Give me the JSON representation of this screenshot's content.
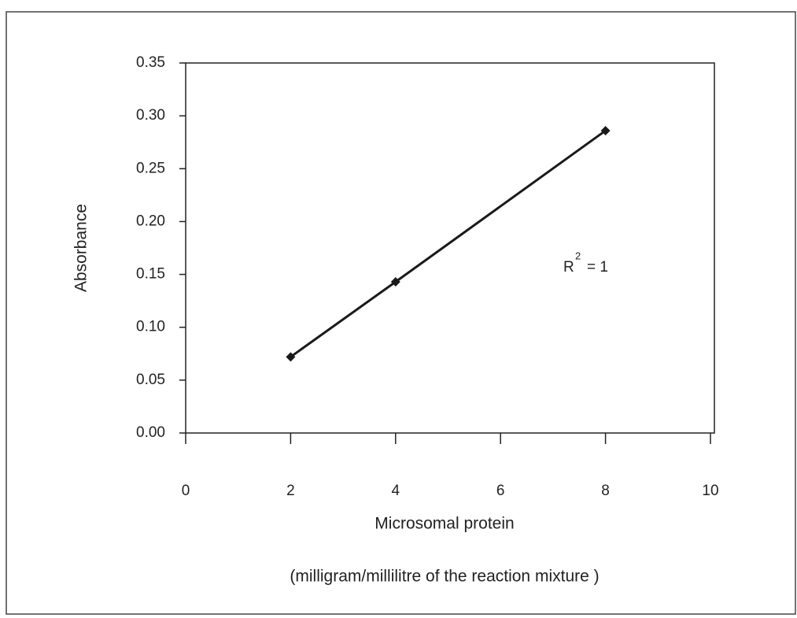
{
  "chart_data": {
    "type": "line",
    "x": [
      2,
      4,
      8
    ],
    "series": [
      {
        "color": "#1a1a1a",
        "values": [
          0.072,
          0.143,
          0.286
        ]
      }
    ],
    "xlim": [
      0,
      10
    ],
    "xticks": [
      0,
      2,
      4,
      6,
      8,
      10
    ],
    "ylim": [
      0,
      0.35
    ],
    "yticks": [
      {
        "value": 0,
        "label": "0.00"
      },
      {
        "value": 0.05,
        "label": "0.05"
      },
      {
        "value": 0.1,
        "label": "0.10"
      },
      {
        "value": 0.15,
        "label": "0.15"
      },
      {
        "value": 0.2,
        "label": "0.20"
      },
      {
        "value": 0.25,
        "label": "0.25"
      },
      {
        "value": 0.3,
        "label": "0.30"
      },
      {
        "value": 0.35,
        "label": "0.35"
      }
    ],
    "xlabel": "Microsomal protein",
    "xlabel_note": "(milligram/millilitre of the reaction mixture )",
    "ylabel": "Absorbance",
    "annotation": {
      "base": "R",
      "sup": "2",
      "rest": "= 1"
    },
    "grid": false
  }
}
